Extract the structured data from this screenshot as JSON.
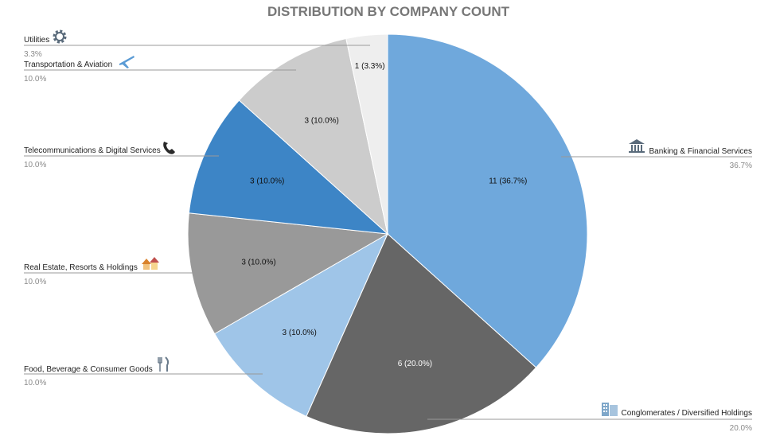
{
  "colors": {
    "banking": "#6fa8dc",
    "conglomerates": "#666666",
    "food": "#9fc5e8",
    "realestate": "#999999",
    "telecom": "#3d85c6",
    "transport": "#cccccc",
    "utilities": "#eeeeee",
    "title": "#777777",
    "leader": "#999999"
  },
  "chart_data": {
    "type": "pie",
    "title": "DISTRIBUTION BY COMPANY COUNT",
    "total": 30,
    "slices": [
      {
        "key": "banking",
        "name": "Banking & Financial Services",
        "value": 11,
        "label": "11 (36.7%)",
        "pct_text": "36.7%",
        "icon": "bank-icon"
      },
      {
        "key": "conglomerates",
        "name": "Conglomerates / Diversified Holdings",
        "value": 6,
        "label": "6 (20.0%)",
        "pct_text": "20.0%",
        "icon": "office-buildings-icon"
      },
      {
        "key": "food",
        "name": "Food, Beverage & Consumer Goods",
        "value": 3,
        "label": "3 (10.0%)",
        "pct_text": "10.0%",
        "icon": "fork-knife-icon"
      },
      {
        "key": "realestate",
        "name": "Real Estate, Resorts & Holdings",
        "value": 3,
        "label": "3 (10.0%)",
        "pct_text": "10.0%",
        "icon": "houses-icon"
      },
      {
        "key": "telecom",
        "name": "Telecommunications & Digital Services",
        "value": 3,
        "label": "3 (10.0%)",
        "pct_text": "10.0%",
        "icon": "phone-icon"
      },
      {
        "key": "transport",
        "name": "Transportation & Aviation",
        "value": 3,
        "label": "3 (10.0%)",
        "pct_text": "10.0%",
        "icon": "airplane-icon"
      },
      {
        "key": "utilities",
        "name": "Utilities",
        "value": 1,
        "label": "1 (3.3%)",
        "pct_text": "3.3%",
        "icon": "gear-icon"
      }
    ]
  }
}
